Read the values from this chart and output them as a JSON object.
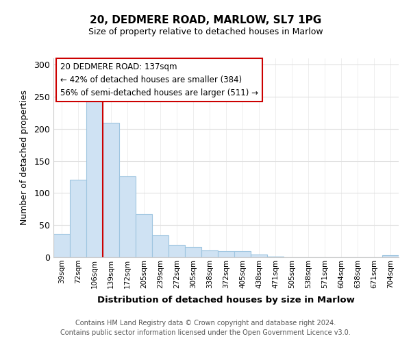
{
  "title1": "20, DEDMERE ROAD, MARLOW, SL7 1PG",
  "title2": "Size of property relative to detached houses in Marlow",
  "xlabel": "Distribution of detached houses by size in Marlow",
  "ylabel": "Number of detached properties",
  "categories": [
    "39sqm",
    "72sqm",
    "106sqm",
    "139sqm",
    "172sqm",
    "205sqm",
    "239sqm",
    "272sqm",
    "305sqm",
    "338sqm",
    "372sqm",
    "405sqm",
    "438sqm",
    "471sqm",
    "505sqm",
    "538sqm",
    "571sqm",
    "604sqm",
    "638sqm",
    "671sqm",
    "704sqm"
  ],
  "values": [
    36,
    121,
    250,
    209,
    126,
    67,
    34,
    19,
    16,
    11,
    10,
    10,
    4,
    1,
    0,
    0,
    0,
    0,
    0,
    0,
    3
  ],
  "bar_color": "#cfe2f3",
  "bar_edge_color": "#9ec5e0",
  "property_line_color": "#cc0000",
  "property_line_index": 3,
  "annotation_text": "20 DEDMERE ROAD: 137sqm\n← 42% of detached houses are smaller (384)\n56% of semi-detached houses are larger (511) →",
  "annotation_box_color": "#ffffff",
  "annotation_box_edge_color": "#cc0000",
  "footer": "Contains HM Land Registry data © Crown copyright and database right 2024.\nContains public sector information licensed under the Open Government Licence v3.0.",
  "ylim": [
    0,
    310
  ],
  "background_color": "#ffffff"
}
